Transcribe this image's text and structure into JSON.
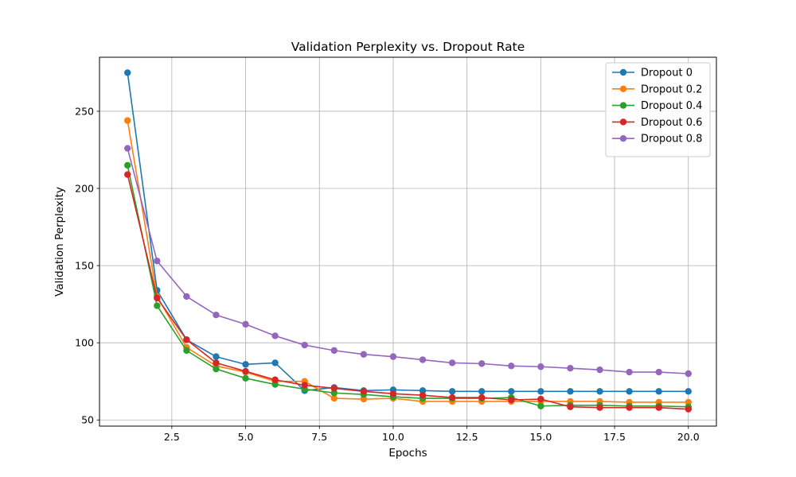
{
  "chart_data": {
    "type": "line",
    "title": "Validation Perplexity vs. Dropout Rate",
    "xlabel": "Epochs",
    "ylabel": "Validation Perplexity",
    "xlim": [
      0.05,
      20.95
    ],
    "ylim": [
      46,
      285
    ],
    "xticks": [
      2.5,
      5.0,
      7.5,
      10.0,
      12.5,
      15.0,
      17.5,
      20.0
    ],
    "xtick_labels": [
      "2.5",
      "5.0",
      "7.5",
      "10.0",
      "12.5",
      "15.0",
      "17.5",
      "20.0"
    ],
    "yticks": [
      50,
      100,
      150,
      200,
      250
    ],
    "ytick_labels": [
      "50",
      "100",
      "150",
      "200",
      "250"
    ],
    "grid": true,
    "legend_position": "top-right",
    "x": [
      1,
      2,
      3,
      4,
      5,
      6,
      7,
      8,
      9,
      10,
      11,
      12,
      13,
      14,
      15,
      16,
      17,
      18,
      19,
      20
    ],
    "series": [
      {
        "name": "Dropout 0",
        "color": "#1f77b4",
        "values": [
          275,
          134,
          102,
          91,
          86,
          87,
          69,
          71,
          69,
          69.5,
          69,
          68.5,
          68.5,
          68.5,
          68.5,
          68.5,
          68.5,
          68.5,
          68.5,
          68.5
        ]
      },
      {
        "name": "Dropout 0.2",
        "color": "#ff7f0e",
        "values": [
          244,
          130,
          97,
          85,
          81,
          75,
          75,
          64,
          63.5,
          64,
          62,
          62,
          62,
          62,
          62,
          62,
          62,
          61.5,
          61.5,
          61.5
        ]
      },
      {
        "name": "Dropout 0.4",
        "color": "#2ca02c",
        "values": [
          215,
          124,
          95,
          83,
          77,
          73,
          70,
          67.5,
          66.5,
          65,
          64,
          64,
          64,
          64.5,
          59,
          59.5,
          59.5,
          59,
          59,
          58.5
        ]
      },
      {
        "name": "Dropout 0.6",
        "color": "#d62728",
        "values": [
          209,
          129,
          102,
          87,
          81.5,
          76,
          72.5,
          70.5,
          68.5,
          67,
          66,
          64.5,
          64.5,
          63,
          63.5,
          58.5,
          58,
          58,
          58,
          57
        ]
      },
      {
        "name": "Dropout 0.8",
        "color": "#9467bd",
        "values": [
          226,
          153,
          130,
          118,
          112,
          104.5,
          98.5,
          95,
          92.5,
          91,
          89,
          87,
          86.5,
          85,
          84.5,
          83.5,
          82.5,
          81,
          81,
          80
        ]
      }
    ]
  }
}
